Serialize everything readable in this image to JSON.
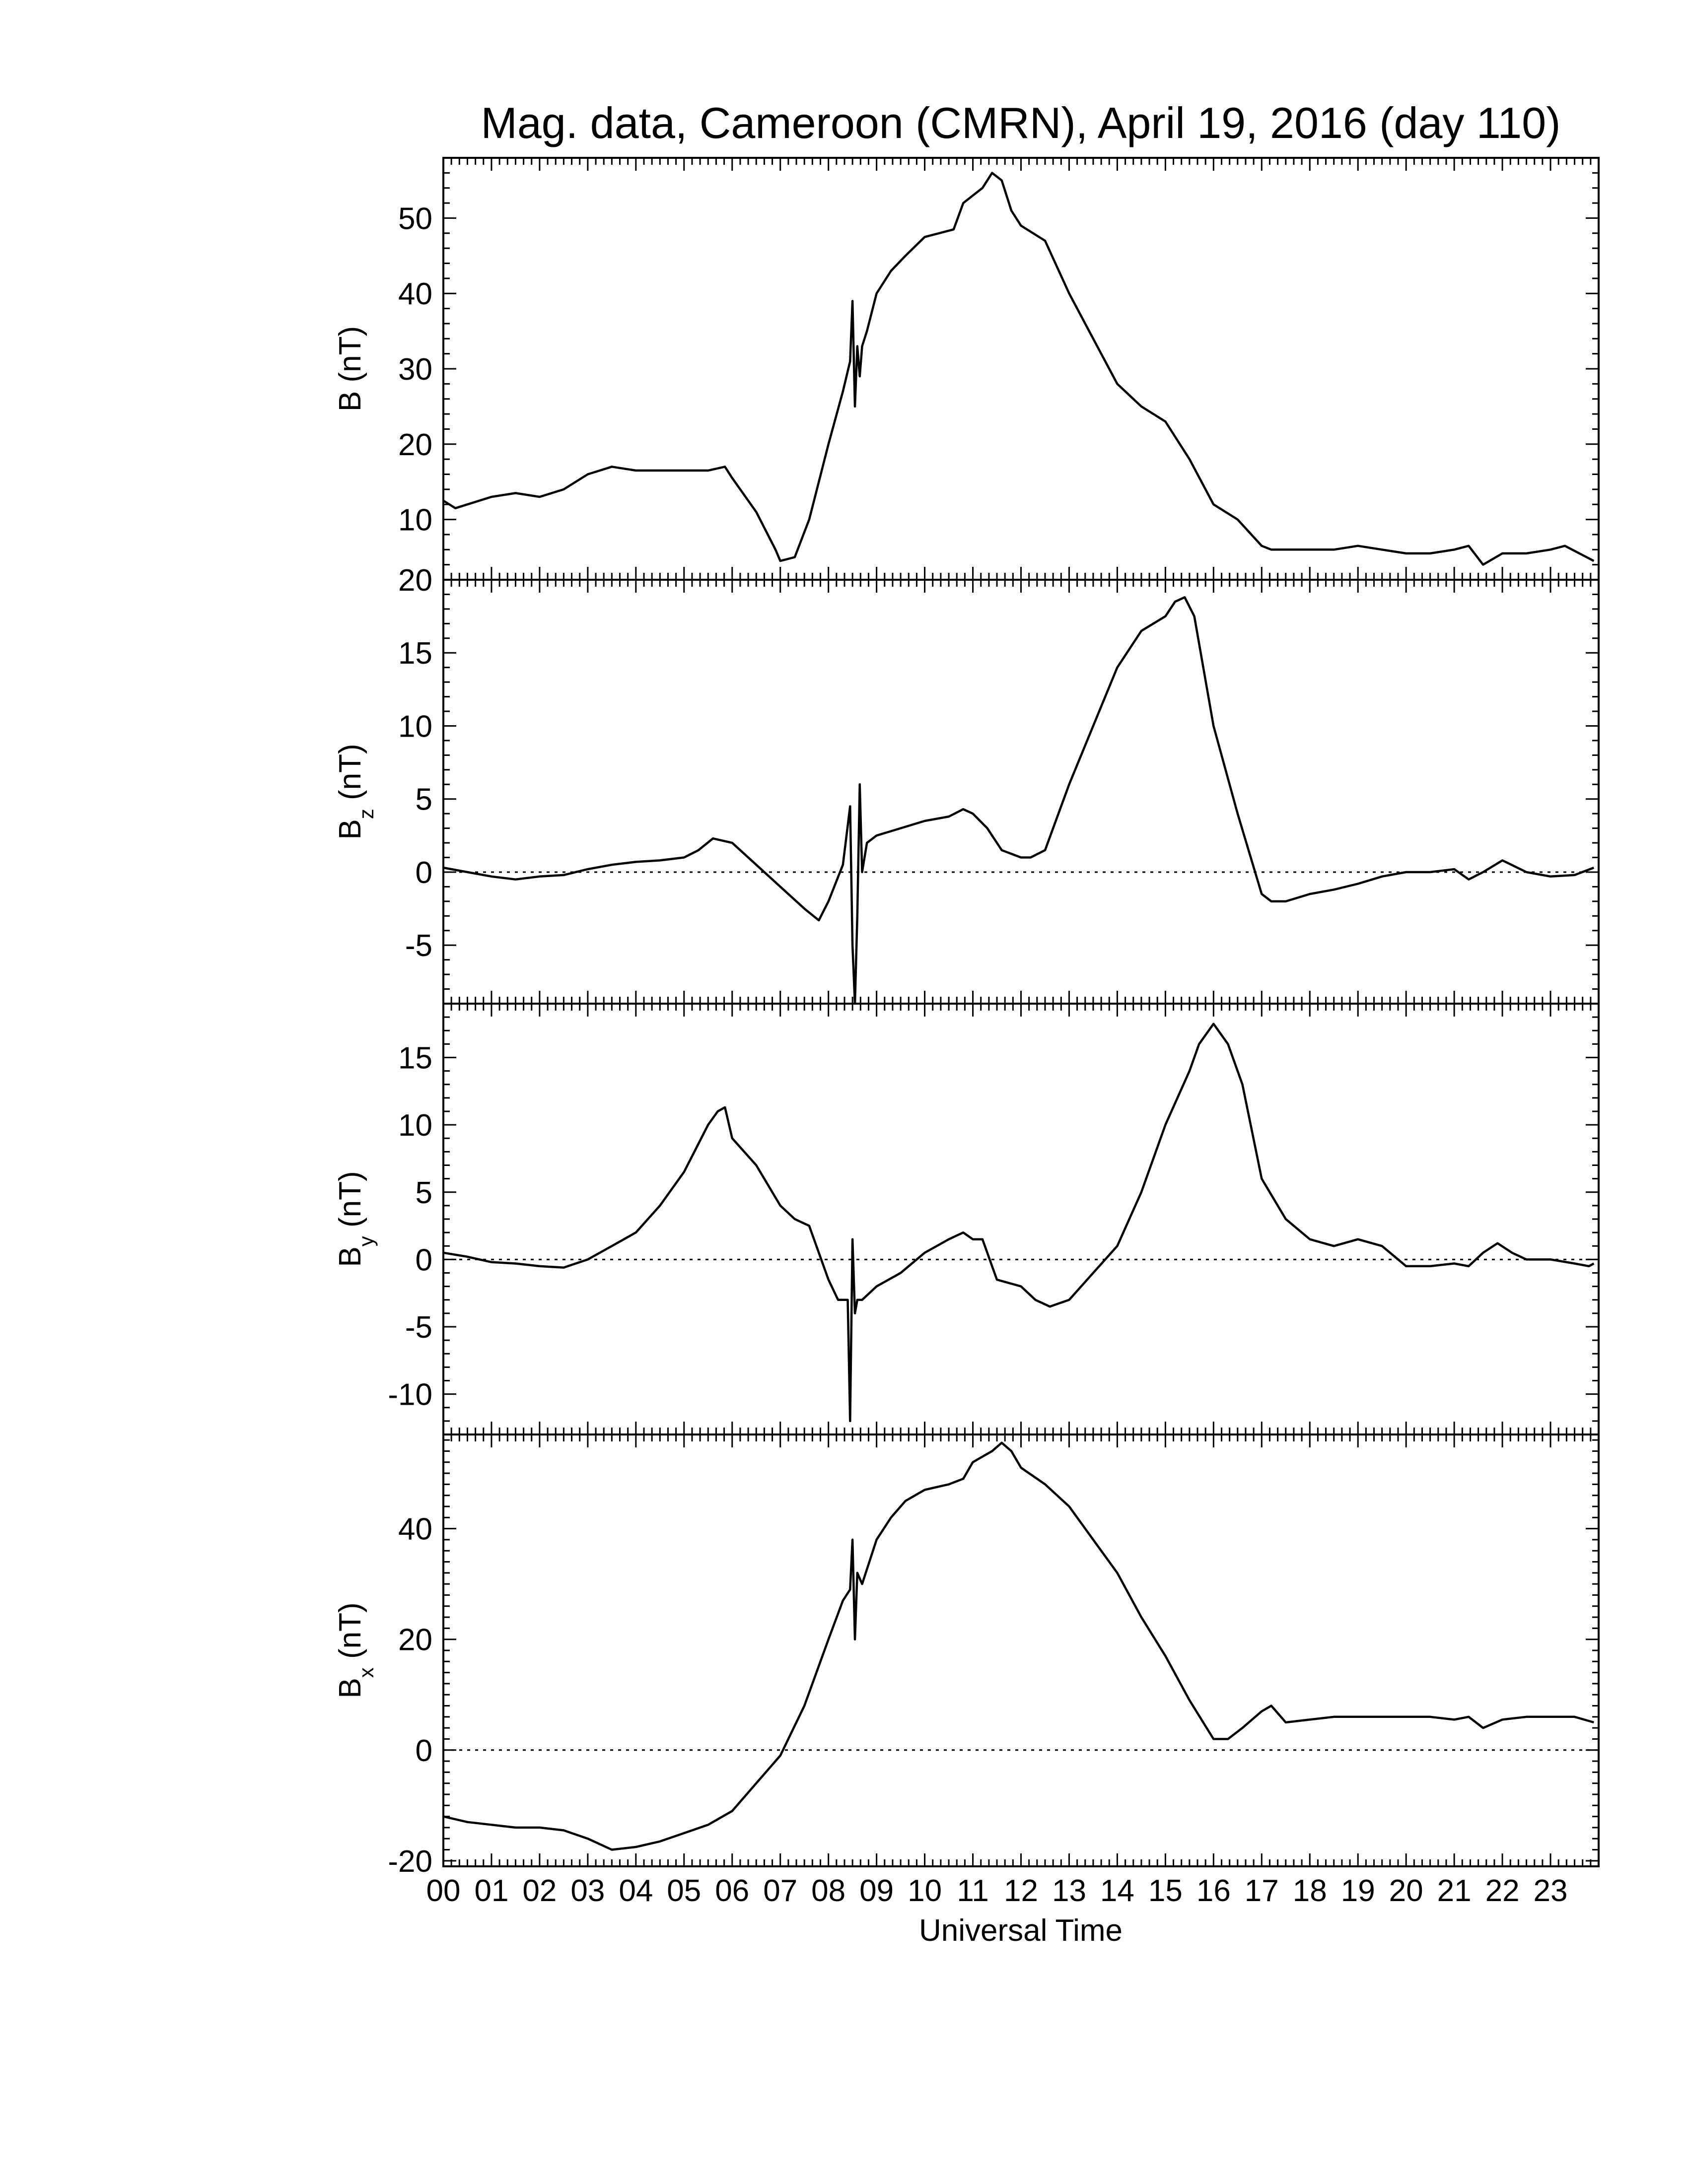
{
  "title": "Mag. data, Cameroon (CMRN), April 19, 2016 (day 110)",
  "xlabel": "Universal Time",
  "x_ticks": [
    "00",
    "01",
    "02",
    "03",
    "04",
    "05",
    "06",
    "07",
    "08",
    "09",
    "10",
    "11",
    "12",
    "13",
    "14",
    "15",
    "16",
    "17",
    "18",
    "19",
    "20",
    "21",
    "22",
    "23"
  ],
  "chart_data": {
    "type": "line",
    "title": "Mag. data, Cameroon (CMRN), April 19, 2016 (day 110)",
    "xlabel": "Universal Time",
    "xlim": [
      0,
      24
    ],
    "panels": [
      {
        "id": "B",
        "ylabel": "B (nT)",
        "ylabel_main": "B (nT)",
        "ylabel_sub": "",
        "ylim": [
          2,
          58
        ],
        "yticks": [
          10,
          20,
          30,
          40,
          50
        ],
        "zero_line": false,
        "series": [
          {
            "x": [
              0,
              0.25,
              0.5,
              1,
              1.5,
              2,
              2.5,
              3,
              3.5,
              4,
              4.5,
              5,
              5.5,
              5.85,
              6,
              6.5,
              6.9,
              7,
              7.3,
              7.6,
              8,
              8.3,
              8.45,
              8.5,
              8.55,
              8.6,
              8.65,
              8.7,
              8.8,
              9,
              9.3,
              9.6,
              10,
              10.3,
              10.6,
              10.8,
              11,
              11.2,
              11.4,
              11.6,
              11.8,
              12,
              12.5,
              13,
              13.5,
              14,
              14.5,
              15,
              15.5,
              16,
              16.5,
              17,
              17.2,
              17.5,
              18,
              18.5,
              19,
              19.5,
              20,
              20.5,
              21,
              21.3,
              21.6,
              22,
              22.5,
              23,
              23.3,
              23.6,
              23.9
            ],
            "y": [
              12.5,
              11.5,
              12,
              13,
              13.5,
              13,
              14,
              16,
              17,
              16.5,
              16.5,
              16.5,
              16.5,
              17,
              15.5,
              11,
              6,
              4.5,
              5,
              10,
              20,
              27,
              31,
              39,
              25,
              33,
              29,
              33,
              35,
              40,
              43,
              45,
              47.5,
              48,
              48.5,
              52,
              53,
              54,
              56,
              55,
              51,
              49,
              47,
              40,
              34,
              28,
              25,
              23,
              18,
              12,
              10,
              6.5,
              6,
              6,
              6,
              6,
              6.5,
              6,
              5.5,
              5.5,
              6,
              6.5,
              4,
              5.5,
              5.5,
              6,
              6.5,
              5.5,
              4.5
            ]
          }
        ]
      },
      {
        "id": "Bz",
        "ylabel": "B z (nT)",
        "ylabel_main": "B",
        "ylabel_sub": "z",
        "ylabel_tail": "(nT)",
        "ylim": [
          -9,
          20
        ],
        "yticks": [
          -5,
          0,
          5,
          10,
          15,
          20
        ],
        "zero_line": true,
        "series": [
          {
            "x": [
              0,
              0.5,
              1,
              1.5,
              2,
              2.5,
              3,
              3.5,
              4,
              4.5,
              5,
              5.3,
              5.6,
              6,
              6.5,
              7,
              7.5,
              7.8,
              8,
              8.3,
              8.45,
              8.5,
              8.55,
              8.6,
              8.65,
              8.7,
              8.8,
              9,
              9.5,
              10,
              10.5,
              10.8,
              11,
              11.3,
              11.6,
              12,
              12.2,
              12.5,
              13,
              13.5,
              14,
              14.5,
              15,
              15.2,
              15.4,
              15.6,
              16,
              16.5,
              17,
              17.2,
              17.5,
              18,
              18.5,
              19,
              19.5,
              20,
              20.5,
              21,
              21.3,
              21.6,
              22,
              22.5,
              23,
              23.5,
              23.9
            ],
            "y": [
              0.3,
              0,
              -0.3,
              -0.5,
              -0.3,
              -0.2,
              0.2,
              0.5,
              0.7,
              0.8,
              1,
              1.5,
              2.3,
              2,
              0.5,
              -1,
              -2.5,
              -3.3,
              -2,
              0.5,
              4.5,
              -5,
              -9,
              -3,
              6,
              0,
              2,
              2.5,
              3,
              3.5,
              3.8,
              4.3,
              4,
              3,
              1.5,
              1,
              1,
              1.5,
              6,
              10,
              14,
              16.5,
              17.5,
              18.5,
              18.8,
              17.5,
              10,
              4,
              -1.5,
              -2,
              -2,
              -1.5,
              -1.2,
              -0.8,
              -0.3,
              0,
              0,
              0.2,
              -0.5,
              0,
              0.8,
              0,
              -0.3,
              -0.2,
              0.3
            ]
          }
        ]
      },
      {
        "id": "By",
        "ylabel": "B y (nT)",
        "ylabel_main": "B",
        "ylabel_sub": "y",
        "ylabel_tail": "(nT)",
        "ylim": [
          -13,
          19
        ],
        "yticks": [
          -10,
          -5,
          0,
          5,
          10,
          15
        ],
        "zero_line": true,
        "series": [
          {
            "x": [
              0,
              0.5,
              1,
              1.5,
              2,
              2.5,
              3,
              3.5,
              4,
              4.5,
              5,
              5.5,
              5.7,
              5.85,
              6,
              6.5,
              7,
              7.3,
              7.6,
              8,
              8.2,
              8.4,
              8.45,
              8.5,
              8.55,
              8.6,
              8.7,
              9,
              9.5,
              10,
              10.5,
              10.8,
              11,
              11.2,
              11.5,
              12,
              12.3,
              12.6,
              13,
              13.5,
              14,
              14.5,
              15,
              15.5,
              15.7,
              16,
              16.3,
              16.6,
              17,
              17.5,
              18,
              18.5,
              19,
              19.5,
              20,
              20.5,
              21,
              21.3,
              21.6,
              21.9,
              22.2,
              22.5,
              23,
              23.5,
              23.8,
              23.9
            ],
            "y": [
              0.5,
              0.2,
              -0.2,
              -0.3,
              -0.5,
              -0.6,
              0,
              1,
              2,
              4,
              6.5,
              10,
              11,
              11.3,
              9,
              7,
              4,
              3,
              2.5,
              -1.5,
              -3,
              -3,
              -12,
              1.5,
              -4,
              -3,
              -3,
              -2,
              -1,
              0.5,
              1.5,
              2,
              1.5,
              1.5,
              -1.5,
              -2,
              -3,
              -3.5,
              -3,
              -1,
              1,
              5,
              10,
              14,
              16,
              17.5,
              16,
              13,
              6,
              3,
              1.5,
              1,
              1.5,
              1,
              -0.5,
              -0.5,
              -0.3,
              -0.5,
              0.5,
              1.2,
              0.5,
              0,
              0,
              -0.3,
              -0.5,
              -0.3
            ]
          }
        ]
      },
      {
        "id": "Bx",
        "ylabel": "B x (nT)",
        "ylabel_main": "B",
        "ylabel_sub": "x",
        "ylabel_tail": "(nT)",
        "ylim": [
          -21,
          57
        ],
        "yticks": [
          -20,
          0,
          20,
          40
        ],
        "zero_line": true,
        "series": [
          {
            "x": [
              0,
              0.5,
              1,
              1.5,
              2,
              2.5,
              3,
              3.5,
              4,
              4.5,
              5,
              5.5,
              6,
              6.5,
              7,
              7.5,
              8,
              8.3,
              8.45,
              8.5,
              8.55,
              8.6,
              8.7,
              9,
              9.3,
              9.6,
              10,
              10.5,
              10.8,
              11,
              11.2,
              11.4,
              11.6,
              11.8,
              12,
              12.5,
              13,
              13.5,
              14,
              14.5,
              15,
              15.5,
              16,
              16.3,
              16.6,
              17,
              17.2,
              17.5,
              18,
              18.5,
              19,
              19.5,
              20,
              20.5,
              21,
              21.3,
              21.6,
              22,
              22.5,
              23,
              23.5,
              23.9
            ],
            "y": [
              -12,
              -13,
              -13.5,
              -14,
              -14,
              -14.5,
              -16,
              -18,
              -17.5,
              -16.5,
              -15,
              -13.5,
              -11,
              -6,
              -1,
              8,
              20,
              27,
              29,
              38,
              20,
              32,
              30,
              38,
              42,
              45,
              47,
              48,
              49,
              52,
              53,
              54,
              55.5,
              54,
              51,
              48,
              44,
              38,
              32,
              24,
              17,
              9,
              2,
              2,
              4,
              7,
              8,
              5,
              5.5,
              6,
              6,
              6,
              6,
              6,
              5.5,
              6,
              4,
              5.5,
              6,
              6,
              6,
              5
            ]
          }
        ]
      }
    ]
  }
}
